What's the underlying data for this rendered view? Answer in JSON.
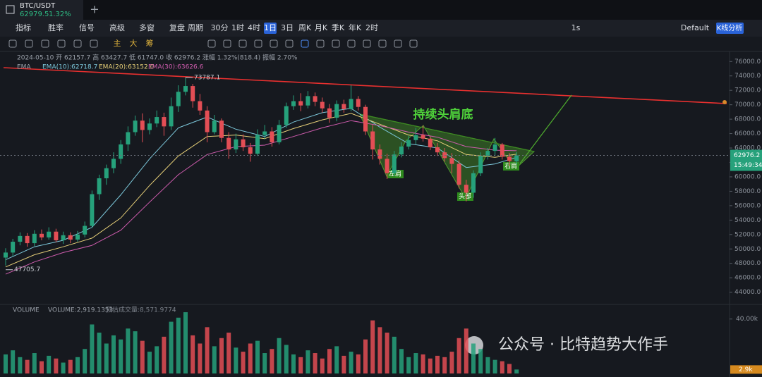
{
  "tab": {
    "symbol": "BTC/USDT",
    "price": "62979.5",
    "change": "1.32%"
  },
  "toolbar": {
    "items": [
      "指标",
      "胜率",
      "信号",
      "高级",
      "多窗",
      "复盘",
      "周期"
    ],
    "periods": [
      "30分",
      "1时",
      "4时",
      "1日",
      "3日",
      "周K",
      "月K",
      "季K",
      "年K",
      "2时"
    ],
    "active_period": "1日",
    "right": [
      "1s",
      "Default",
      "K线分析"
    ]
  },
  "drawing_bar": {
    "modes": [
      "主",
      "大",
      "筹"
    ]
  },
  "legend": {
    "ohlc": "2024-05-10 开 62157.7 高 63427.7 低 61747.0 收 62976.2 涨幅 1.32%(818.4) 振幅 2.70%",
    "ema_title": "EMA",
    "emas": [
      "EMA(10):62718.7",
      "EMA(20):63152.0",
      "EMA(30):63626.6"
    ]
  },
  "annotations": {
    "title": "持续头肩底",
    "left": "左肩",
    "head": "头部",
    "right": "右肩"
  },
  "watermark": "公众号 · 比特趋势大作手",
  "countdown": "15:49:34",
  "chart_data": {
    "type": "candlestick",
    "up_color": "#26a17b",
    "down_color": "#e34e55",
    "grid": false,
    "ylim": [
      42500,
      77200
    ],
    "yticks": [
      {
        "value": 44000,
        "label": "44000.0"
      },
      {
        "value": 46000,
        "label": "46000.0"
      },
      {
        "value": 48000,
        "label": "48000.0"
      },
      {
        "value": 50000,
        "label": "50000.0"
      },
      {
        "value": 52000,
        "label": "52000.0"
      },
      {
        "value": 54000,
        "label": "54000.0"
      },
      {
        "value": 56000,
        "label": "56000.0"
      },
      {
        "value": 58000,
        "label": "58000.0"
      },
      {
        "value": 60000,
        "label": "60000.0"
      },
      {
        "value": 62000,
        "label": "62000.0"
      },
      {
        "value": 64000,
        "label": "64000.0"
      },
      {
        "value": 66000,
        "label": "66000.0"
      },
      {
        "value": 68000,
        "label": "68000.0"
      },
      {
        "value": 70000,
        "label": "70000.0"
      },
      {
        "value": 72000,
        "label": "72000.0"
      },
      {
        "value": 74000,
        "label": "74000.0"
      },
      {
        "value": 76000,
        "label": "76000.0"
      }
    ],
    "candles": [
      [
        48800,
        50100,
        47705.7,
        49500
      ],
      [
        49500,
        51400,
        49000,
        51000
      ],
      [
        51000,
        52300,
        50500,
        51800
      ],
      [
        51800,
        52200,
        50300,
        50800
      ],
      [
        50800,
        52600,
        50400,
        52100
      ],
      [
        52100,
        52700,
        51200,
        51600
      ],
      [
        51600,
        53000,
        51300,
        52400
      ],
      [
        52400,
        52800,
        50900,
        51200
      ],
      [
        51200,
        52400,
        50700,
        51900
      ],
      [
        51900,
        52300,
        50800,
        51300
      ],
      [
        51300,
        52500,
        51000,
        52000
      ],
      [
        52000,
        53800,
        51600,
        53200
      ],
      [
        53200,
        58100,
        52900,
        57600
      ],
      [
        57600,
        60300,
        56800,
        59800
      ],
      [
        59800,
        61700,
        58900,
        61200
      ],
      [
        61200,
        63400,
        60500,
        62500
      ],
      [
        62500,
        65100,
        61800,
        64500
      ],
      [
        64500,
        67000,
        63600,
        66200
      ],
      [
        66200,
        68500,
        65700,
        67800
      ],
      [
        67800,
        68800,
        64800,
        66500
      ],
      [
        66500,
        68100,
        65900,
        67400
      ],
      [
        67400,
        69200,
        66900,
        68300
      ],
      [
        68300,
        68900,
        65700,
        67000
      ],
      [
        67000,
        71000,
        66500,
        69800
      ],
      [
        69800,
        72700,
        69000,
        71800
      ],
      [
        71800,
        73787.1,
        71300,
        72600
      ],
      [
        72600,
        72900,
        69600,
        70500
      ],
      [
        70500,
        71500,
        68600,
        69200
      ],
      [
        69200,
        69800,
        64800,
        66200
      ],
      [
        66200,
        68600,
        65900,
        67800
      ],
      [
        67800,
        68100,
        64800,
        65400
      ],
      [
        65400,
        66200,
        62500,
        63800
      ],
      [
        63800,
        66000,
        63300,
        65200
      ],
      [
        65200,
        65900,
        63600,
        64100
      ],
      [
        64100,
        64700,
        62100,
        63200
      ],
      [
        63200,
        66600,
        62900,
        65800
      ],
      [
        65800,
        67200,
        65200,
        66300
      ],
      [
        66300,
        66900,
        64200,
        64800
      ],
      [
        64800,
        67900,
        64500,
        67200
      ],
      [
        67200,
        70300,
        66800,
        69800
      ],
      [
        69800,
        71300,
        69300,
        70500
      ],
      [
        70500,
        71600,
        69100,
        69900
      ],
      [
        69900,
        71900,
        69500,
        71200
      ],
      [
        71200,
        71700,
        69800,
        70400
      ],
      [
        70400,
        71000,
        68900,
        69500
      ],
      [
        69500,
        70100,
        67500,
        68200
      ],
      [
        68200,
        70600,
        67700,
        70100
      ],
      [
        70100,
        70700,
        68900,
        69400
      ],
      [
        69400,
        72700,
        69100,
        70800
      ],
      [
        70800,
        71200,
        69200,
        69700
      ],
      [
        69700,
        70000,
        65800,
        66300
      ],
      [
        66300,
        67200,
        62400,
        63800
      ],
      [
        63800,
        64500,
        61700,
        62500
      ],
      [
        62500,
        63200,
        59700,
        60500
      ],
      [
        60500,
        63600,
        60100,
        63100
      ],
      [
        63100,
        64800,
        62700,
        64200
      ],
      [
        64200,
        65700,
        63800,
        65100
      ],
      [
        65100,
        66800,
        64500,
        65800
      ],
      [
        65800,
        67100,
        64900,
        65300
      ],
      [
        65300,
        65600,
        63700,
        64100
      ],
      [
        64100,
        64700,
        62900,
        63400
      ],
      [
        63400,
        64000,
        62100,
        62600
      ],
      [
        62600,
        63300,
        60500,
        61800
      ],
      [
        61800,
        62300,
        58400,
        58900
      ],
      [
        58900,
        59600,
        56600,
        57800
      ],
      [
        57800,
        60900,
        57100,
        60500
      ],
      [
        60500,
        63400,
        60100,
        62900
      ],
      [
        62900,
        64000,
        62400,
        63600
      ],
      [
        63600,
        65400,
        62900,
        64500
      ],
      [
        64500,
        64700,
        62400,
        62800
      ],
      [
        62800,
        63300,
        61500,
        62200
      ],
      [
        62157.7,
        63427.7,
        61747.0,
        62976.2
      ]
    ],
    "emas": [
      {
        "color": "#7cc7da",
        "x": [
          0,
          4,
          8,
          12,
          16,
          20,
          24,
          28,
          32,
          36,
          40,
          44,
          48,
          52,
          56,
          60,
          64,
          68,
          71
        ],
        "values": [
          48500,
          50300,
          51200,
          53000,
          57500,
          62500,
          66800,
          68300,
          66600,
          65600,
          67600,
          68900,
          69500,
          66900,
          64600,
          64000,
          61300,
          61800,
          62718.7
        ]
      },
      {
        "color": "#e6cf78",
        "x": [
          0,
          4,
          8,
          12,
          16,
          20,
          24,
          28,
          32,
          36,
          40,
          44,
          48,
          52,
          56,
          60,
          64,
          68,
          71
        ],
        "values": [
          47500,
          49200,
          50300,
          51500,
          54300,
          58800,
          62900,
          65600,
          65800,
          65300,
          66700,
          67900,
          68800,
          67300,
          65800,
          65000,
          63100,
          62700,
          63152.0
        ]
      },
      {
        "color": "#cf5cae",
        "x": [
          0,
          4,
          8,
          12,
          16,
          20,
          24,
          28,
          32,
          36,
          40,
          44,
          48,
          52,
          56,
          60,
          64,
          68,
          71
        ],
        "values": [
          46500,
          48200,
          49500,
          50500,
          52600,
          56500,
          60300,
          63100,
          64200,
          64400,
          65600,
          66800,
          67800,
          67100,
          66200,
          65500,
          64200,
          63700,
          63626.6
        ]
      }
    ],
    "volume": {
      "label": "VOLUME",
      "info": "VOLUME:2,919.1353",
      "estimate": "预估成交量:8,571.9774",
      "last_label": "2.9k",
      "ylim": [
        0,
        44000
      ],
      "yticks": [
        {
          "value": 40000,
          "label": "40.00k"
        }
      ],
      "values": [
        14000,
        17000,
        12000,
        10000,
        15000,
        9000,
        13000,
        11000,
        8000,
        10000,
        12000,
        18000,
        36000,
        30000,
        22000,
        28000,
        25000,
        33000,
        31000,
        24000,
        16000,
        20000,
        27000,
        38000,
        41000,
        45000,
        28000,
        22000,
        34000,
        20000,
        26000,
        30000,
        19000,
        16000,
        22000,
        24000,
        15000,
        18000,
        26000,
        21000,
        14000,
        12000,
        17000,
        15000,
        11000,
        18000,
        20000,
        13000,
        16000,
        14000,
        25000,
        39000,
        34000,
        30000,
        27000,
        18000,
        12000,
        15000,
        14000,
        11000,
        13000,
        12000,
        16000,
        26000,
        33000,
        22000,
        18000,
        12000,
        10000,
        9000,
        7000,
        2919.1353
      ]
    }
  }
}
